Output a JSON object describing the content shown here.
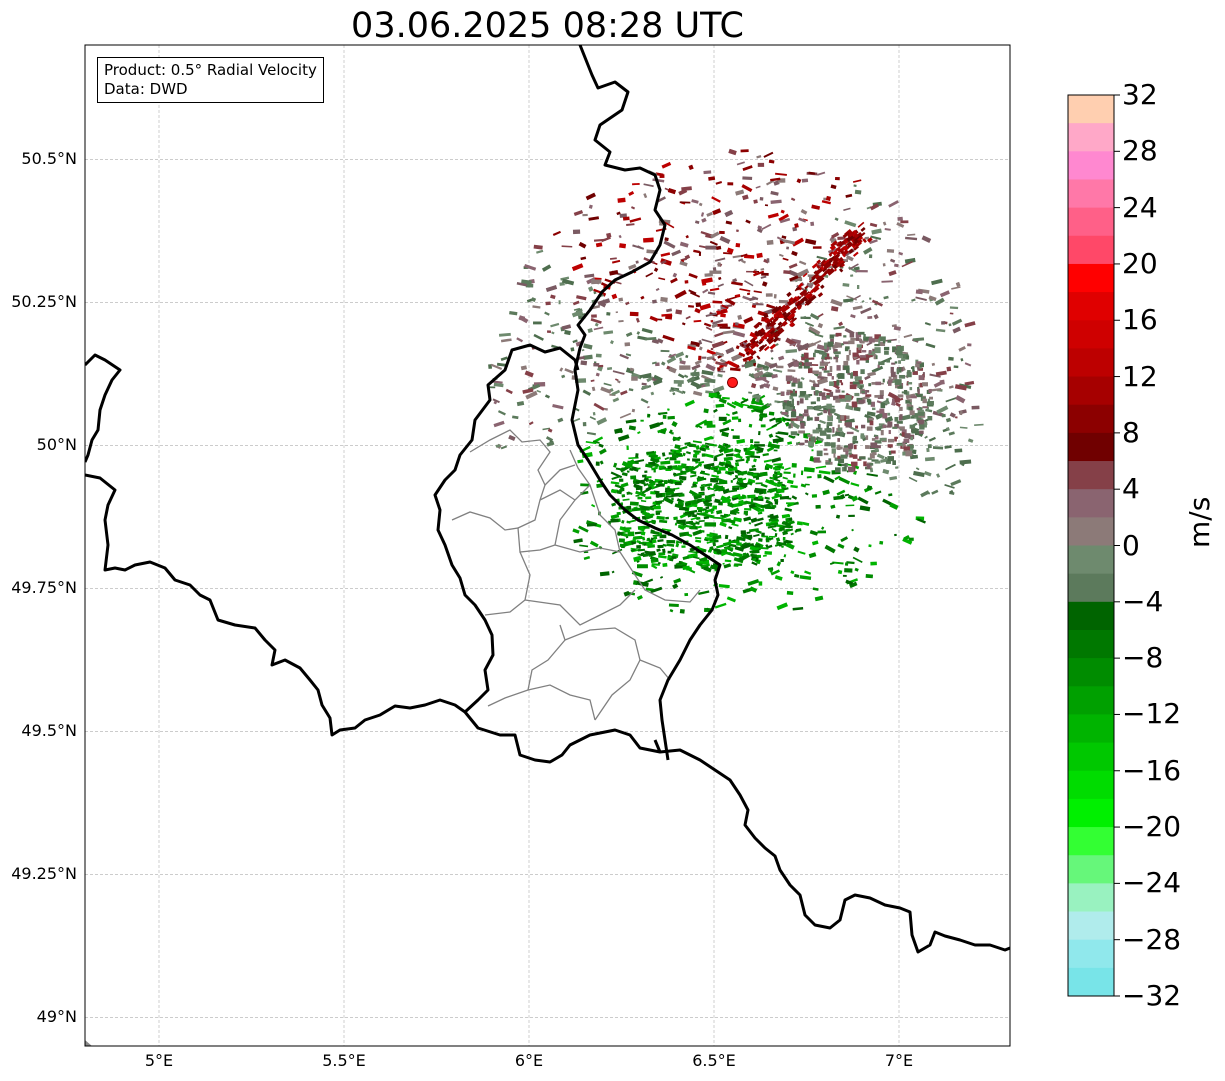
{
  "title": "03.06.2025 08:28 UTC",
  "info": {
    "product": "Product: 0.5° Radial Velocity",
    "source": "Data: DWD"
  },
  "map": {
    "lon_range": [
      4.8,
      7.3
    ],
    "lat_range": [
      48.95,
      50.7
    ],
    "lat_ticks": [
      {
        "value": 49.0,
        "label": "49°N"
      },
      {
        "value": 49.25,
        "label": "49.25°N"
      },
      {
        "value": 49.5,
        "label": "49.5°N"
      },
      {
        "value": 49.75,
        "label": "49.75°N"
      },
      {
        "value": 50.0,
        "label": "50°N"
      },
      {
        "value": 50.25,
        "label": "50.25°N"
      },
      {
        "value": 50.5,
        "label": "50.5°N"
      }
    ],
    "lon_ticks": [
      {
        "value": 5.0,
        "label": "5°E"
      },
      {
        "value": 5.5,
        "label": "5.5°E"
      },
      {
        "value": 6.0,
        "label": "6°E"
      },
      {
        "value": 6.5,
        "label": "6.5°E"
      },
      {
        "value": 7.0,
        "label": "7°E"
      }
    ],
    "gridlines": true,
    "radar_site": {
      "lon": 6.55,
      "lat": 50.11,
      "color": "#ff1a1a"
    }
  },
  "colorbar": {
    "unit": "m/s",
    "min": -32,
    "max": 32,
    "step": 4,
    "tick_labels": [
      "32",
      "28",
      "24",
      "20",
      "16",
      "12",
      "8",
      "4",
      "0",
      "−4",
      "−8",
      "−12",
      "−16",
      "−20",
      "−24",
      "−28",
      "−32"
    ],
    "colors_top_to_bottom": [
      "#ffcfb0",
      "#ffa8c8",
      "#ff88d0",
      "#ff78a8",
      "#ff6088",
      "#ff4868",
      "#ff0000",
      "#e00000",
      "#cf0000",
      "#bd0000",
      "#a60000",
      "#8c0000",
      "#700000",
      "#854048",
      "#8a6470",
      "#8c7a78",
      "#6e8a6e",
      "#5c7a5c",
      "#006400",
      "#007800",
      "#008c00",
      "#00a000",
      "#00b400",
      "#00c800",
      "#00dc00",
      "#00f000",
      "#33ff33",
      "#66f77a",
      "#99f2c0",
      "#b0ecec",
      "#90e8ec",
      "#78e4e8"
    ]
  }
}
